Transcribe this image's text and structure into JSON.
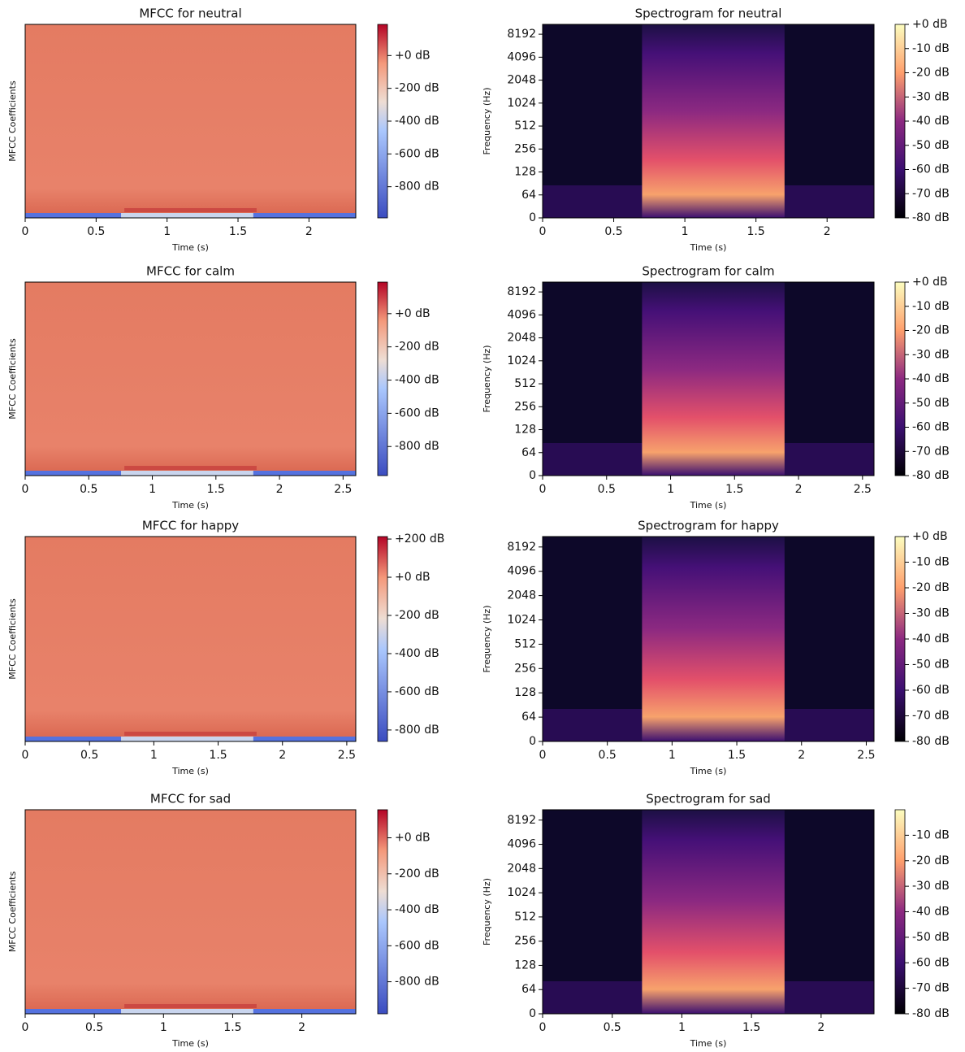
{
  "chart_data": [
    {
      "type": "heatmap",
      "title": "MFCC for neutral",
      "xlabel": "Time (s)",
      "ylabel": "MFCC Coefficients",
      "xlim": [
        0,
        2.33
      ],
      "xticks": [
        0,
        0.5,
        1,
        1.5,
        2
      ],
      "colormap": "coolwarm",
      "colorbar": {
        "lim": [
          -990,
          190
        ],
        "ticks": [
          {
            "value": 0,
            "label": "+0 dB"
          },
          {
            "value": -200,
            "label": "-200 dB"
          },
          {
            "value": -400,
            "label": "-400 dB"
          },
          {
            "value": -600,
            "label": "-600 dB"
          },
          {
            "value": -800,
            "label": "-800 dB"
          }
        ]
      }
    },
    {
      "type": "heatmap",
      "title": "Spectrogram for neutral",
      "xlabel": "Time (s)",
      "ylabel": "Frequency (Hz)",
      "xlim": [
        0,
        2.33
      ],
      "xticks": [
        0,
        0.5,
        1,
        1.5,
        2
      ],
      "yscale": "symlog",
      "ylim": [
        0,
        11025
      ],
      "yticks": [
        0,
        64,
        128,
        256,
        512,
        1024,
        2048,
        4096,
        8192
      ],
      "colormap": "magma",
      "colorbar": {
        "lim": [
          -80,
          0
        ],
        "ticks": [
          {
            "value": 0,
            "label": "+0 dB"
          },
          {
            "value": -10,
            "label": "-10 dB"
          },
          {
            "value": -20,
            "label": "-20 dB"
          },
          {
            "value": -30,
            "label": "-30 dB"
          },
          {
            "value": -40,
            "label": "-40 dB"
          },
          {
            "value": -50,
            "label": "-50 dB"
          },
          {
            "value": -60,
            "label": "-60 dB"
          },
          {
            "value": -70,
            "label": "-70 dB"
          },
          {
            "value": -80,
            "label": "-80 dB"
          }
        ]
      }
    },
    {
      "type": "heatmap",
      "title": "MFCC for calm",
      "xlabel": "Time (s)",
      "ylabel": "MFCC Coefficients",
      "xlim": [
        0,
        2.6
      ],
      "xticks": [
        0,
        0.5,
        1,
        1.5,
        2,
        2.5
      ],
      "colormap": "coolwarm",
      "colorbar": {
        "lim": [
          -975,
          190
        ],
        "ticks": [
          {
            "value": 0,
            "label": "+0 dB"
          },
          {
            "value": -200,
            "label": "-200 dB"
          },
          {
            "value": -400,
            "label": "-400 dB"
          },
          {
            "value": -600,
            "label": "-600 dB"
          },
          {
            "value": -800,
            "label": "-800 dB"
          }
        ]
      }
    },
    {
      "type": "heatmap",
      "title": "Spectrogram for calm",
      "xlabel": "Time (s)",
      "ylabel": "Frequency (Hz)",
      "xlim": [
        0,
        2.59
      ],
      "xticks": [
        0,
        0.5,
        1,
        1.5,
        2,
        2.5
      ],
      "yscale": "symlog",
      "ylim": [
        0,
        11025
      ],
      "yticks": [
        0,
        64,
        128,
        256,
        512,
        1024,
        2048,
        4096,
        8192
      ],
      "colormap": "magma",
      "colorbar": {
        "lim": [
          -80,
          0
        ],
        "ticks": [
          {
            "value": 0,
            "label": "+0 dB"
          },
          {
            "value": -10,
            "label": "-10 dB"
          },
          {
            "value": -20,
            "label": "-20 dB"
          },
          {
            "value": -30,
            "label": "-30 dB"
          },
          {
            "value": -40,
            "label": "-40 dB"
          },
          {
            "value": -50,
            "label": "-50 dB"
          },
          {
            "value": -60,
            "label": "-60 dB"
          },
          {
            "value": -70,
            "label": "-70 dB"
          },
          {
            "value": -80,
            "label": "-80 dB"
          }
        ]
      }
    },
    {
      "type": "heatmap",
      "title": "MFCC for happy",
      "xlabel": "Time (s)",
      "ylabel": "MFCC Coefficients",
      "xlim": [
        0,
        2.57
      ],
      "xticks": [
        0,
        0.5,
        1,
        1.5,
        2,
        2.5
      ],
      "colormap": "coolwarm",
      "colorbar": {
        "lim": [
          -860,
          213
        ],
        "ticks": [
          {
            "value": 200,
            "label": "+200 dB"
          },
          {
            "value": 0,
            "label": "+0 dB"
          },
          {
            "value": -200,
            "label": "-200 dB"
          },
          {
            "value": -400,
            "label": "-400 dB"
          },
          {
            "value": -600,
            "label": "-600 dB"
          },
          {
            "value": -800,
            "label": "-800 dB"
          }
        ]
      }
    },
    {
      "type": "heatmap",
      "title": "Spectrogram for happy",
      "xlabel": "Time (s)",
      "ylabel": "Frequency (Hz)",
      "xlim": [
        0,
        2.56
      ],
      "xticks": [
        0,
        0.5,
        1,
        1.5,
        2,
        2.5
      ],
      "yscale": "symlog",
      "ylim": [
        0,
        11025
      ],
      "yticks": [
        0,
        64,
        128,
        256,
        512,
        1024,
        2048,
        4096,
        8192
      ],
      "colormap": "magma",
      "colorbar": {
        "lim": [
          -80,
          0
        ],
        "ticks": [
          {
            "value": 0,
            "label": "+0 dB"
          },
          {
            "value": -10,
            "label": "-10 dB"
          },
          {
            "value": -20,
            "label": "-20 dB"
          },
          {
            "value": -30,
            "label": "-30 dB"
          },
          {
            "value": -40,
            "label": "-40 dB"
          },
          {
            "value": -50,
            "label": "-50 dB"
          },
          {
            "value": -60,
            "label": "-60 dB"
          },
          {
            "value": -70,
            "label": "-70 dB"
          },
          {
            "value": -80,
            "label": "-80 dB"
          }
        ]
      }
    },
    {
      "type": "heatmap",
      "title": "MFCC for sad",
      "xlabel": "Time (s)",
      "ylabel": "MFCC Coefficients",
      "xlim": [
        0,
        2.39
      ],
      "xticks": [
        0,
        0.5,
        1,
        1.5,
        2
      ],
      "colormap": "coolwarm",
      "colorbar": {
        "lim": [
          -978,
          156
        ],
        "ticks": [
          {
            "value": 0,
            "label": "+0 dB"
          },
          {
            "value": -200,
            "label": "-200 dB"
          },
          {
            "value": -400,
            "label": "-400 dB"
          },
          {
            "value": -600,
            "label": "-600 dB"
          },
          {
            "value": -800,
            "label": "-800 dB"
          }
        ]
      }
    },
    {
      "type": "heatmap",
      "title": "Spectrogram for sad",
      "xlabel": "Time (s)",
      "ylabel": "Frequency (Hz)",
      "xlim": [
        0,
        2.38
      ],
      "xticks": [
        0,
        0.5,
        1,
        1.5,
        2
      ],
      "yscale": "symlog",
      "ylim": [
        0,
        11025
      ],
      "yticks": [
        0,
        64,
        128,
        256,
        512,
        1024,
        2048,
        4096,
        8192
      ],
      "colormap": "magma",
      "colorbar": {
        "lim": [
          -80,
          0
        ],
        "ticks": [
          {
            "value": -10,
            "label": "-10 dB"
          },
          {
            "value": -20,
            "label": "-20 dB"
          },
          {
            "value": -30,
            "label": "-30 dB"
          },
          {
            "value": -40,
            "label": "-40 dB"
          },
          {
            "value": -50,
            "label": "-50 dB"
          },
          {
            "value": -60,
            "label": "-60 dB"
          },
          {
            "value": -70,
            "label": "-70 dB"
          },
          {
            "value": -80,
            "label": "-80 dB"
          }
        ]
      }
    }
  ]
}
